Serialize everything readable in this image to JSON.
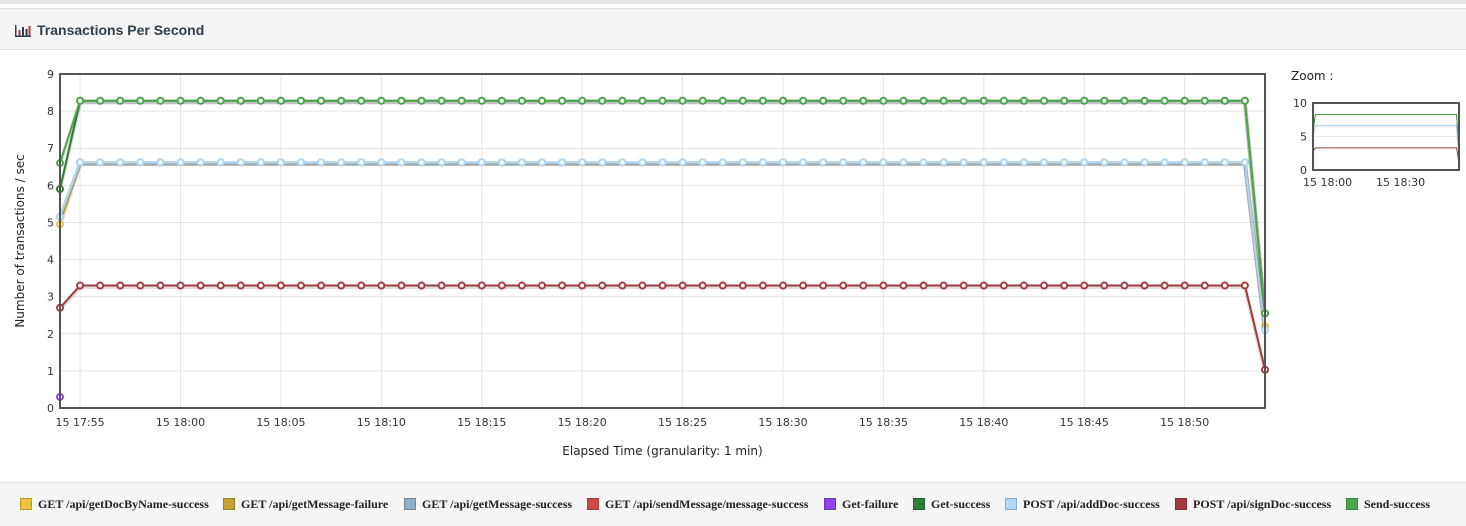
{
  "panel": {
    "title": "Transactions Per Second"
  },
  "zoom": {
    "label": "Zoom :",
    "yticks": [
      "10",
      "5",
      "0"
    ],
    "xticks": [
      "15 18:00",
      "15 18:30"
    ]
  },
  "chart_data": {
    "type": "line",
    "title": "",
    "xlabel": "Elapsed Time (granularity: 1 min)",
    "ylabel": "Number of transactions / sec",
    "ylim": [
      0,
      9
    ],
    "yticks": [
      0,
      1,
      2,
      3,
      4,
      5,
      6,
      7,
      8,
      9
    ],
    "xrange": [
      "15 17:54",
      "15 18:54"
    ],
    "xticks": [
      "15 17:55",
      "15 18:00",
      "15 18:05",
      "15 18:10",
      "15 18:15",
      "15 18:20",
      "15 18:25",
      "15 18:30",
      "15 18:35",
      "15 18:40",
      "15 18:45",
      "15 18:50"
    ],
    "grid": true,
    "legend_position": "bottom",
    "x_minutes": "15 17:54 to 15 18:54, one point per minute (61 points)",
    "series": [
      {
        "name": "GET /api/getDocByName-success",
        "color": "#edc240",
        "start": 4.95,
        "plateau": 6.62,
        "end": 2.2
      },
      {
        "name": "GET /api/getMessage-failure",
        "color": "#c8a030",
        "start": null,
        "plateau": null,
        "end": null
      },
      {
        "name": "GET /api/getMessage-success",
        "color": "#8fadc6",
        "start": 5.15,
        "plateau": 6.62,
        "end": 2.1
      },
      {
        "name": "GET /api/sendMessage/message-success",
        "color": "#cb4b4b",
        "start": null,
        "plateau": null,
        "end": null
      },
      {
        "name": "Get-failure",
        "color": "#9440ed",
        "start": 0.3,
        "plateau": null,
        "end": null
      },
      {
        "name": "Get-success",
        "color": "#2e7d32",
        "start": 5.9,
        "plateau": 8.28,
        "end": 2.55
      },
      {
        "name": "POST /api/addDoc-success",
        "color": "#afd8f8",
        "start": 5.15,
        "plateau": 6.62,
        "end": 2.1
      },
      {
        "name": "POST /api/signDoc-success",
        "color": "#a23c3c",
        "start": 2.7,
        "plateau": 3.3,
        "end": 1.03
      },
      {
        "name": "Send-success",
        "color": "#4da74d",
        "start": 6.6,
        "plateau": 8.28,
        "end": 2.55
      }
    ]
  },
  "legend": {
    "items": [
      "GET /api/getDocByName-success",
      "GET /api/getMessage-failure",
      "GET /api/getMessage-success",
      "GET /api/sendMessage/message-success",
      "Get-failure",
      "Get-success",
      "POST /api/addDoc-success",
      "POST /api/signDoc-success",
      "Send-success"
    ]
  }
}
